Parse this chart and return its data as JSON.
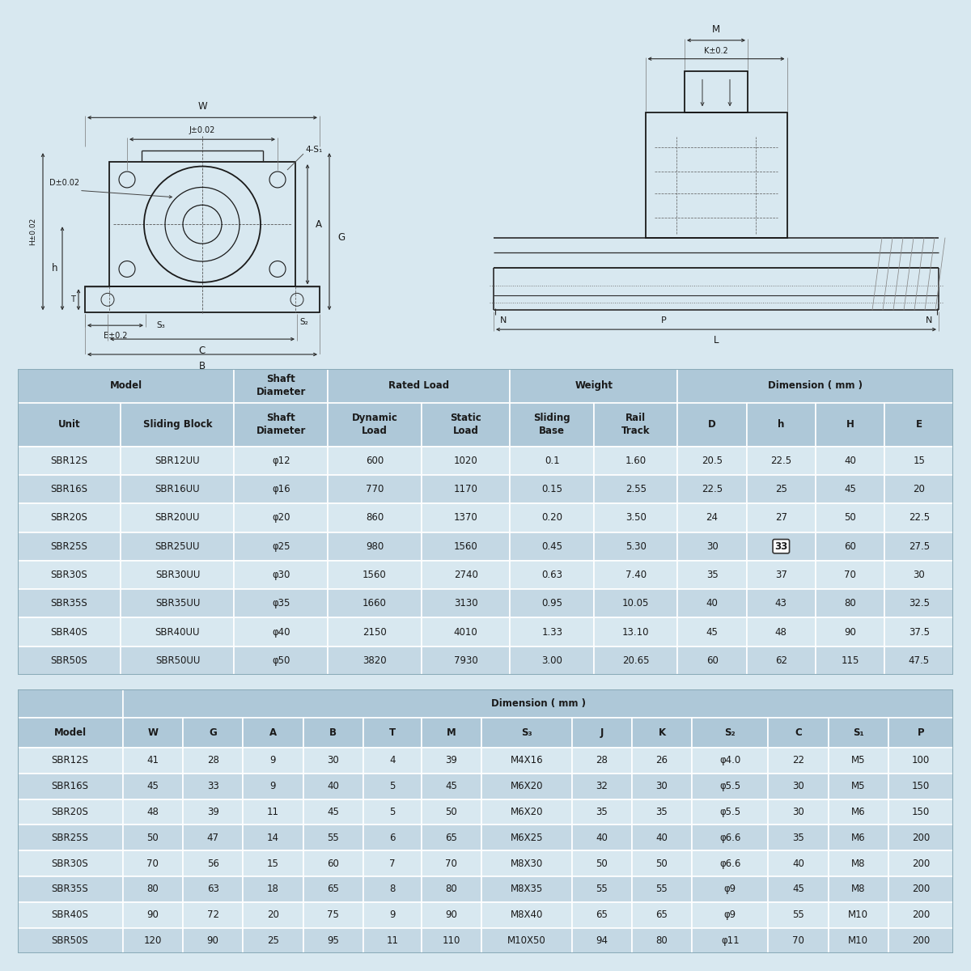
{
  "bg_color": "#d8e8f0",
  "table_header_bg": "#aec8d8",
  "table_row_bg1": "#d8e8f0",
  "table_row_bg2": "#c4d8e4",
  "table_border_color": "#ffffff",
  "text_color": "#1a1a1a",
  "table1_data": [
    [
      "SBR12S",
      "SBR12UU",
      "φ12",
      "600",
      "1020",
      "0.1",
      "1.60",
      "20.5",
      "22.5",
      "40",
      "15"
    ],
    [
      "SBR16S",
      "SBR16UU",
      "φ16",
      "770",
      "1170",
      "0.15",
      "2.55",
      "22.5",
      "25",
      "45",
      "20"
    ],
    [
      "SBR20S",
      "SBR20UU",
      "φ20",
      "860",
      "1370",
      "0.20",
      "3.50",
      "24",
      "27",
      "50",
      "22.5"
    ],
    [
      "SBR25S",
      "SBR25UU",
      "φ25",
      "980",
      "1560",
      "0.45",
      "5.30",
      "30",
      "33",
      "60",
      "27.5"
    ],
    [
      "SBR30S",
      "SBR30UU",
      "φ30",
      "1560",
      "2740",
      "0.63",
      "7.40",
      "35",
      "37",
      "70",
      "30"
    ],
    [
      "SBR35S",
      "SBR35UU",
      "φ35",
      "1660",
      "3130",
      "0.95",
      "10.05",
      "40",
      "43",
      "80",
      "32.5"
    ],
    [
      "SBR40S",
      "SBR40UU",
      "φ40",
      "2150",
      "4010",
      "1.33",
      "13.10",
      "45",
      "48",
      "90",
      "37.5"
    ],
    [
      "SBR50S",
      "SBR50UU",
      "φ50",
      "3820",
      "7930",
      "3.00",
      "20.65",
      "60",
      "62",
      "115",
      "47.5"
    ]
  ],
  "table2_data": [
    [
      "SBR12S",
      "41",
      "28",
      "9",
      "30",
      "4",
      "39",
      "M4X16",
      "28",
      "26",
      "φ4.0",
      "22",
      "M5",
      "100"
    ],
    [
      "SBR16S",
      "45",
      "33",
      "9",
      "40",
      "5",
      "45",
      "M6X20",
      "32",
      "30",
      "φ5.5",
      "30",
      "M5",
      "150"
    ],
    [
      "SBR20S",
      "48",
      "39",
      "11",
      "45",
      "5",
      "50",
      "M6X20",
      "35",
      "35",
      "φ5.5",
      "30",
      "M6",
      "150"
    ],
    [
      "SBR25S",
      "50",
      "47",
      "14",
      "55",
      "6",
      "65",
      "M6X25",
      "40",
      "40",
      "φ6.6",
      "35",
      "M6",
      "200"
    ],
    [
      "SBR30S",
      "70",
      "56",
      "15",
      "60",
      "7",
      "70",
      "M8X30",
      "50",
      "50",
      "φ6.6",
      "40",
      "M8",
      "200"
    ],
    [
      "SBR35S",
      "80",
      "63",
      "18",
      "65",
      "8",
      "80",
      "M8X35",
      "55",
      "55",
      "φ9",
      "45",
      "M8",
      "200"
    ],
    [
      "SBR40S",
      "90",
      "72",
      "20",
      "75",
      "9",
      "90",
      "M8X40",
      "65",
      "65",
      "φ9",
      "55",
      "M10",
      "200"
    ],
    [
      "SBR50S",
      "120",
      "90",
      "25",
      "95",
      "11",
      "110",
      "M10X50",
      "94",
      "80",
      "φ11",
      "70",
      "M10",
      "200"
    ]
  ]
}
